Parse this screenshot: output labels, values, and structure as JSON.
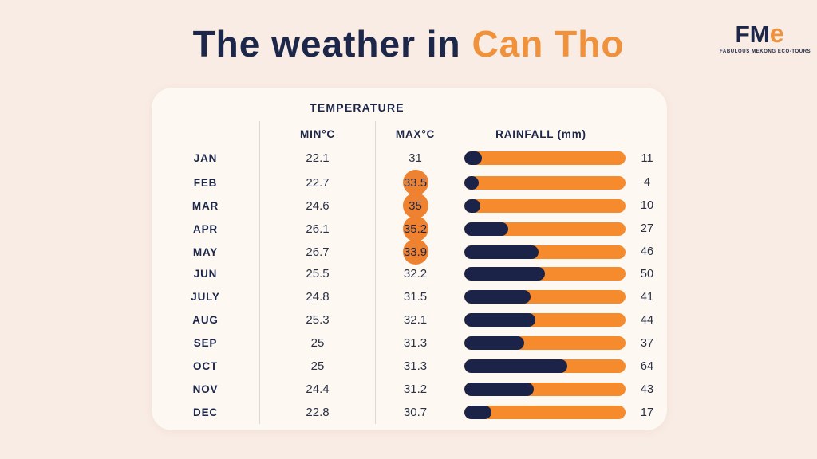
{
  "title": {
    "prefix": "The weather in ",
    "highlight": "Can Tho"
  },
  "logo": {
    "mark_fm": "FM",
    "mark_e": "e",
    "caption": "FABULOUS MEKONG ECO-TOURS"
  },
  "colors": {
    "background": "#f9ece4",
    "card": "#fdf8f2",
    "navy": "#1c2749",
    "orange": "#f0913c",
    "bar_orange": "#f68b2e",
    "bar_navy": "#1b2448",
    "highlight_circle": "#ee8230"
  },
  "chart_data": {
    "type": "table",
    "title": "The weather in Can Tho",
    "group_header": "TEMPERATURE",
    "columns": {
      "min": "MIN°C",
      "max": "MAX°C",
      "rainfall": "RAINFALL  (mm)"
    },
    "rainfall_axis_max": 100,
    "rows": [
      {
        "month": "JAN",
        "min": "22.1",
        "max": "31",
        "rain": 11,
        "max_highlight": false
      },
      {
        "month": "FEB",
        "min": "22.7",
        "max": "33.5",
        "rain": 4,
        "max_highlight": true
      },
      {
        "month": "MAR",
        "min": "24.6",
        "max": "35",
        "rain": 10,
        "max_highlight": true
      },
      {
        "month": "APR",
        "min": "26.1",
        "max": "35.2",
        "rain": 27,
        "max_highlight": true
      },
      {
        "month": "MAY",
        "min": "26.7",
        "max": "33.9",
        "rain": 46,
        "max_highlight": true
      },
      {
        "month": "JUN",
        "min": "25.5",
        "max": "32.2",
        "rain": 50,
        "max_highlight": false
      },
      {
        "month": "JULY",
        "min": "24.8",
        "max": "31.5",
        "rain": 41,
        "max_highlight": false
      },
      {
        "month": "AUG",
        "min": "25.3",
        "max": "32.1",
        "rain": 44,
        "max_highlight": false
      },
      {
        "month": "SEP",
        "min": "25",
        "max": "31.3",
        "rain": 37,
        "max_highlight": false
      },
      {
        "month": "OCT",
        "min": "25",
        "max": "31.3",
        "rain": 64,
        "max_highlight": false
      },
      {
        "month": "NOV",
        "min": "24.4",
        "max": "31.2",
        "rain": 43,
        "max_highlight": false
      },
      {
        "month": "DEC",
        "min": "22.8",
        "max": "30.7",
        "rain": 17,
        "max_highlight": false
      }
    ]
  }
}
